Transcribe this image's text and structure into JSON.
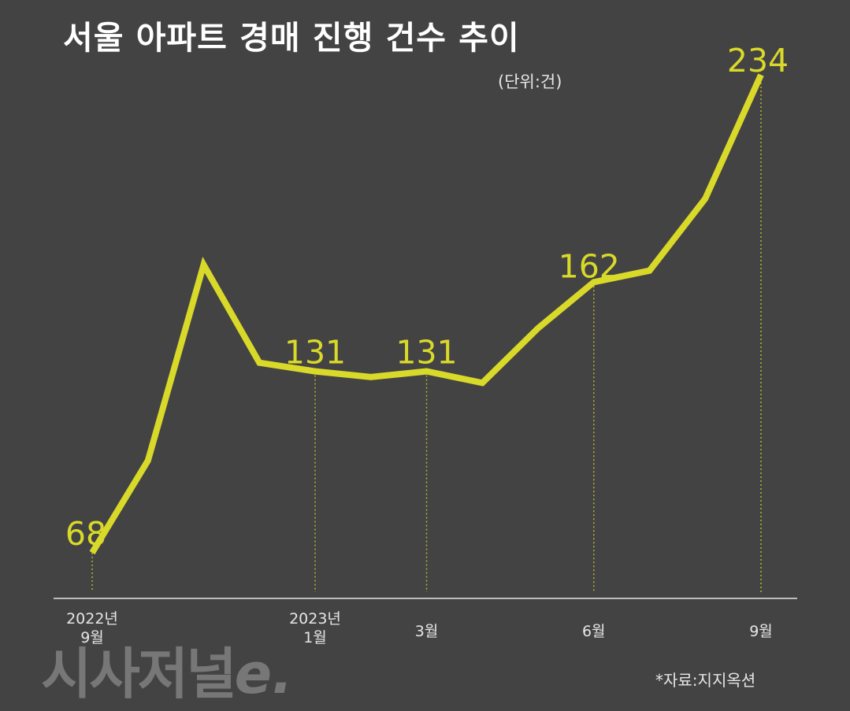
{
  "title": "서울 아파트 경매 진행 건수 추이",
  "unit": "(단위:건)",
  "source": "*자료:지지옥션",
  "logo": {
    "text": "시사저널",
    "accent": "e."
  },
  "colors": {
    "background": "#434343",
    "line": "#d9d92a",
    "axis": "#bdbdbd",
    "text": "#ffffff"
  },
  "chart_data": {
    "type": "line",
    "title": "서울 아파트 경매 진행 건수 추이",
    "ylabel": "(단위:건)",
    "xlabel": "",
    "x": [
      "2022-09",
      "2022-10",
      "2022-11",
      "2022-12",
      "2023-01",
      "2023-02",
      "2023-03",
      "2023-04",
      "2023-05",
      "2023-06",
      "2023-07",
      "2023-08",
      "2023-09"
    ],
    "xtick_labels": [
      {
        "index": 0,
        "lines": [
          "2022년",
          "9월"
        ]
      },
      {
        "index": 4,
        "lines": [
          "2023년",
          "1월"
        ]
      },
      {
        "index": 6,
        "lines": [
          "3월"
        ]
      },
      {
        "index": 9,
        "lines": [
          "6월"
        ]
      },
      {
        "index": 12,
        "lines": [
          "9월"
        ]
      }
    ],
    "series": [
      {
        "values": [
          68,
          100,
          168,
          134,
          131,
          129,
          131,
          127,
          146,
          162,
          166,
          191,
          234
        ]
      }
    ],
    "data_labels": [
      {
        "index": 0,
        "text": "68"
      },
      {
        "index": 4,
        "text": "131"
      },
      {
        "index": 6,
        "text": "131"
      },
      {
        "index": 9,
        "text": "162"
      },
      {
        "index": 12,
        "text": "234"
      }
    ],
    "ylim": [
      55,
      240
    ],
    "grid": false,
    "legend": "none"
  }
}
